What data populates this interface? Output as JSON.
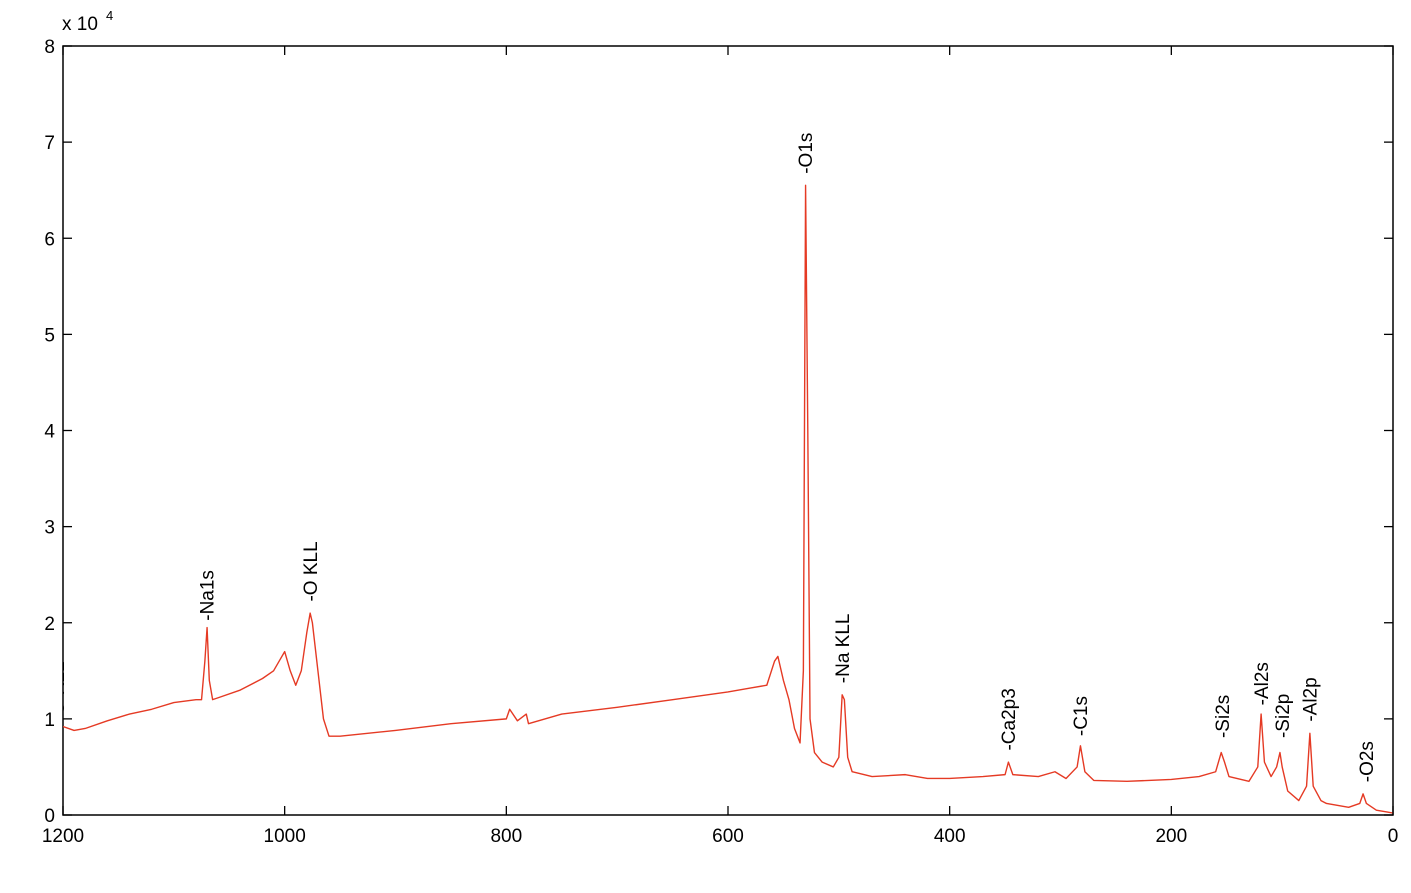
{
  "chart_data": {
    "type": "line",
    "y_scale_label": "x 10",
    "y_scale_exponent": "4",
    "xlim": [
      1200,
      0
    ],
    "xticks": [
      1200,
      1000,
      800,
      600,
      400,
      200,
      0
    ],
    "ylim": [
      0,
      8
    ],
    "yticks": [
      0,
      1,
      2,
      3,
      4,
      5,
      6,
      7,
      8
    ],
    "color": "#e53a24",
    "x": [
      1200,
      1190,
      1180,
      1160,
      1140,
      1120,
      1100,
      1080,
      1075,
      1072,
      1070,
      1068,
      1065,
      1060,
      1040,
      1020,
      1010,
      1005,
      1000,
      995,
      990,
      985,
      980,
      977,
      975,
      970,
      965,
      960,
      950,
      900,
      850,
      800,
      797,
      790,
      782,
      780,
      750,
      700,
      650,
      600,
      580,
      565,
      558,
      555,
      550,
      545,
      540,
      535,
      532,
      530,
      528,
      526,
      522,
      515,
      505,
      500,
      497,
      495,
      492,
      488,
      470,
      440,
      420,
      400,
      370,
      350,
      347,
      343,
      320,
      305,
      295,
      285,
      282,
      278,
      270,
      240,
      200,
      175,
      160,
      155,
      152,
      148,
      130,
      122,
      119,
      116,
      110,
      105,
      102,
      100,
      95,
      85,
      78,
      75,
      72,
      65,
      60,
      40,
      30,
      27,
      24,
      15,
      5,
      0
    ],
    "values": [
      0.92,
      0.88,
      0.9,
      0.98,
      1.05,
      1.1,
      1.17,
      1.2,
      1.2,
      1.6,
      1.95,
      1.4,
      1.2,
      1.22,
      1.3,
      1.42,
      1.5,
      1.6,
      1.7,
      1.5,
      1.35,
      1.5,
      1.9,
      2.1,
      2.0,
      1.5,
      1.0,
      0.82,
      0.82,
      0.88,
      0.95,
      1.0,
      1.1,
      0.98,
      1.05,
      0.95,
      1.05,
      1.12,
      1.2,
      1.28,
      1.32,
      1.35,
      1.6,
      1.65,
      1.4,
      1.2,
      0.9,
      0.75,
      1.5,
      6.55,
      4.0,
      1.0,
      0.65,
      0.55,
      0.5,
      0.6,
      1.25,
      1.2,
      0.6,
      0.45,
      0.4,
      0.42,
      0.38,
      0.38,
      0.4,
      0.42,
      0.55,
      0.42,
      0.4,
      0.45,
      0.38,
      0.5,
      0.72,
      0.45,
      0.36,
      0.35,
      0.37,
      0.4,
      0.45,
      0.65,
      0.55,
      0.4,
      0.35,
      0.5,
      1.05,
      0.55,
      0.4,
      0.5,
      0.65,
      0.5,
      0.25,
      0.15,
      0.3,
      0.85,
      0.3,
      0.15,
      0.12,
      0.08,
      0.12,
      0.22,
      0.12,
      0.05,
      0.03,
      0.02
    ],
    "annotations": [
      {
        "text": "-O KLL",
        "x": 1205,
        "y": 0.95
      },
      {
        "text": "-Na1s",
        "x": 1070,
        "y": 2.0
      },
      {
        "text": "-O KLL",
        "x": 977,
        "y": 2.2
      },
      {
        "text": "-O1s",
        "x": 530,
        "y": 6.65
      },
      {
        "text": "-Na KLL",
        "x": 497,
        "y": 1.35
      },
      {
        "text": "-Ca2p3",
        "x": 347,
        "y": 0.65
      },
      {
        "text": "-C1s",
        "x": 282,
        "y": 0.8
      },
      {
        "text": "-Si2s",
        "x": 154,
        "y": 0.78
      },
      {
        "text": "-Al2s",
        "x": 119,
        "y": 1.12
      },
      {
        "text": "-Si2p",
        "x": 100,
        "y": 0.78
      },
      {
        "text": "-Al2p",
        "x": 75,
        "y": 0.95
      },
      {
        "text": "-O2s",
        "x": 24,
        "y": 0.32
      }
    ]
  }
}
